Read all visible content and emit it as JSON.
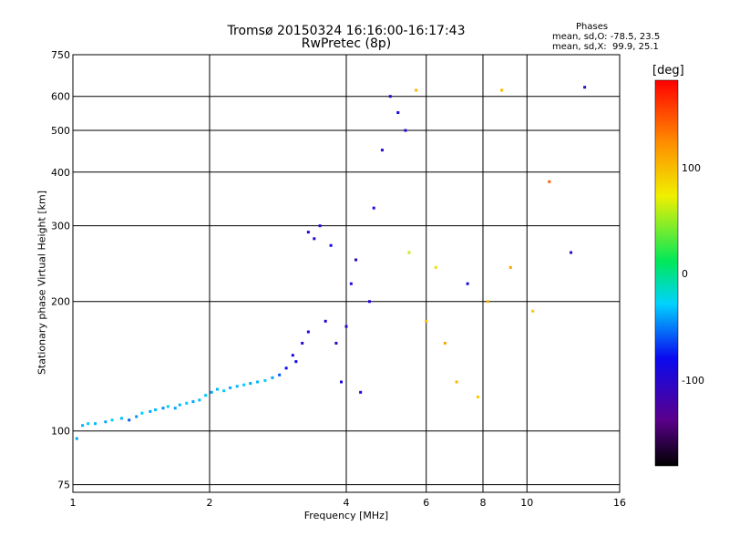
{
  "chart_data": {
    "type": "scatter",
    "title": "Tromsø 20150324 16:16:00-16:17:43",
    "subtitle": "RwPretec (8p)",
    "xlabel": "Frequency [MHz]",
    "ylabel": "Stationary phase Virtual Height [km]",
    "x_scale": "log",
    "y_scale": "log",
    "xlim": [
      1,
      16
    ],
    "ylim": [
      72,
      750
    ],
    "x_ticks": [
      1,
      2,
      4,
      6,
      8,
      10,
      16
    ],
    "x_tick_labels": [
      "1",
      "2",
      "4",
      "6",
      "8",
      "10",
      "16"
    ],
    "y_ticks": [
      75,
      100,
      200,
      300,
      400,
      500,
      600,
      750
    ],
    "y_tick_labels": [
      "75",
      "100",
      "200",
      "300",
      "400",
      "500",
      "600",
      "750"
    ],
    "grid": true,
    "stats_title": "Phases",
    "stats_o": "mean, sd,O: -78.5, 23.5",
    "stats_x": "mean, sd,X:  99.9, 25.1",
    "colorbar": {
      "label": "[deg]",
      "range": [
        -180,
        180
      ],
      "ticks": [
        100,
        0,
        -100
      ],
      "tick_labels": [
        "100",
        "0",
        "-100"
      ]
    },
    "series": [
      {
        "color_dimension": "phase_deg",
        "points": [
          {
            "x": 1.02,
            "y": 96,
            "c": -40
          },
          {
            "x": 1.05,
            "y": 103,
            "c": -35
          },
          {
            "x": 1.08,
            "y": 104,
            "c": -30
          },
          {
            "x": 1.12,
            "y": 104,
            "c": -35
          },
          {
            "x": 1.18,
            "y": 105,
            "c": -40
          },
          {
            "x": 1.22,
            "y": 106,
            "c": -30
          },
          {
            "x": 1.28,
            "y": 107,
            "c": -35
          },
          {
            "x": 1.33,
            "y": 106,
            "c": -60
          },
          {
            "x": 1.38,
            "y": 108,
            "c": -45
          },
          {
            "x": 1.42,
            "y": 110,
            "c": -30
          },
          {
            "x": 1.48,
            "y": 111,
            "c": -40
          },
          {
            "x": 1.52,
            "y": 112,
            "c": -35
          },
          {
            "x": 1.58,
            "y": 113,
            "c": -45
          },
          {
            "x": 1.62,
            "y": 114,
            "c": -30
          },
          {
            "x": 1.68,
            "y": 113,
            "c": -40
          },
          {
            "x": 1.72,
            "y": 115,
            "c": -35
          },
          {
            "x": 1.78,
            "y": 116,
            "c": -30
          },
          {
            "x": 1.84,
            "y": 117,
            "c": -40
          },
          {
            "x": 1.9,
            "y": 118,
            "c": -35
          },
          {
            "x": 1.96,
            "y": 121,
            "c": -30
          },
          {
            "x": 2.02,
            "y": 123,
            "c": -40
          },
          {
            "x": 2.08,
            "y": 125,
            "c": -35
          },
          {
            "x": 2.15,
            "y": 124,
            "c": -30
          },
          {
            "x": 2.22,
            "y": 126,
            "c": -40
          },
          {
            "x": 2.3,
            "y": 127,
            "c": -35
          },
          {
            "x": 2.38,
            "y": 128,
            "c": -30
          },
          {
            "x": 2.46,
            "y": 129,
            "c": -40
          },
          {
            "x": 2.55,
            "y": 130,
            "c": -35
          },
          {
            "x": 2.65,
            "y": 131,
            "c": -30
          },
          {
            "x": 2.75,
            "y": 133,
            "c": -40
          },
          {
            "x": 2.85,
            "y": 135,
            "c": -60
          },
          {
            "x": 2.95,
            "y": 140,
            "c": -80
          },
          {
            "x": 3.05,
            "y": 150,
            "c": -90
          },
          {
            "x": 3.1,
            "y": 145,
            "c": -80
          },
          {
            "x": 3.2,
            "y": 160,
            "c": -95
          },
          {
            "x": 3.3,
            "y": 170,
            "c": -90
          },
          {
            "x": 3.3,
            "y": 290,
            "c": -90
          },
          {
            "x": 3.4,
            "y": 280,
            "c": -100
          },
          {
            "x": 3.5,
            "y": 300,
            "c": -90
          },
          {
            "x": 3.6,
            "y": 180,
            "c": -95
          },
          {
            "x": 3.7,
            "y": 270,
            "c": -85
          },
          {
            "x": 3.8,
            "y": 160,
            "c": -100
          },
          {
            "x": 3.9,
            "y": 130,
            "c": -90
          },
          {
            "x": 4.0,
            "y": 175,
            "c": -95
          },
          {
            "x": 4.1,
            "y": 220,
            "c": -90
          },
          {
            "x": 4.2,
            "y": 250,
            "c": -100
          },
          {
            "x": 4.3,
            "y": 123,
            "c": -85
          },
          {
            "x": 4.5,
            "y": 200,
            "c": -95
          },
          {
            "x": 4.6,
            "y": 330,
            "c": -90
          },
          {
            "x": 4.8,
            "y": 450,
            "c": -95
          },
          {
            "x": 5.0,
            "y": 600,
            "c": -100
          },
          {
            "x": 5.2,
            "y": 550,
            "c": -90
          },
          {
            "x": 5.4,
            "y": 500,
            "c": -95
          },
          {
            "x": 5.5,
            "y": 260,
            "c": 60
          },
          {
            "x": 5.7,
            "y": 620,
            "c": 100
          },
          {
            "x": 6.0,
            "y": 180,
            "c": 100
          },
          {
            "x": 6.3,
            "y": 240,
            "c": 80
          },
          {
            "x": 6.6,
            "y": 160,
            "c": 110
          },
          {
            "x": 7.0,
            "y": 130,
            "c": 100
          },
          {
            "x": 7.4,
            "y": 220,
            "c": -90
          },
          {
            "x": 7.8,
            "y": 120,
            "c": 90
          },
          {
            "x": 8.2,
            "y": 200,
            "c": 100
          },
          {
            "x": 8.8,
            "y": 620,
            "c": 100
          },
          {
            "x": 9.2,
            "y": 240,
            "c": 110
          },
          {
            "x": 10.3,
            "y": 190,
            "c": 90
          },
          {
            "x": 11.2,
            "y": 380,
            "c": 140
          },
          {
            "x": 12.5,
            "y": 260,
            "c": -100
          },
          {
            "x": 13.4,
            "y": 630,
            "c": -110
          }
        ]
      }
    ]
  }
}
